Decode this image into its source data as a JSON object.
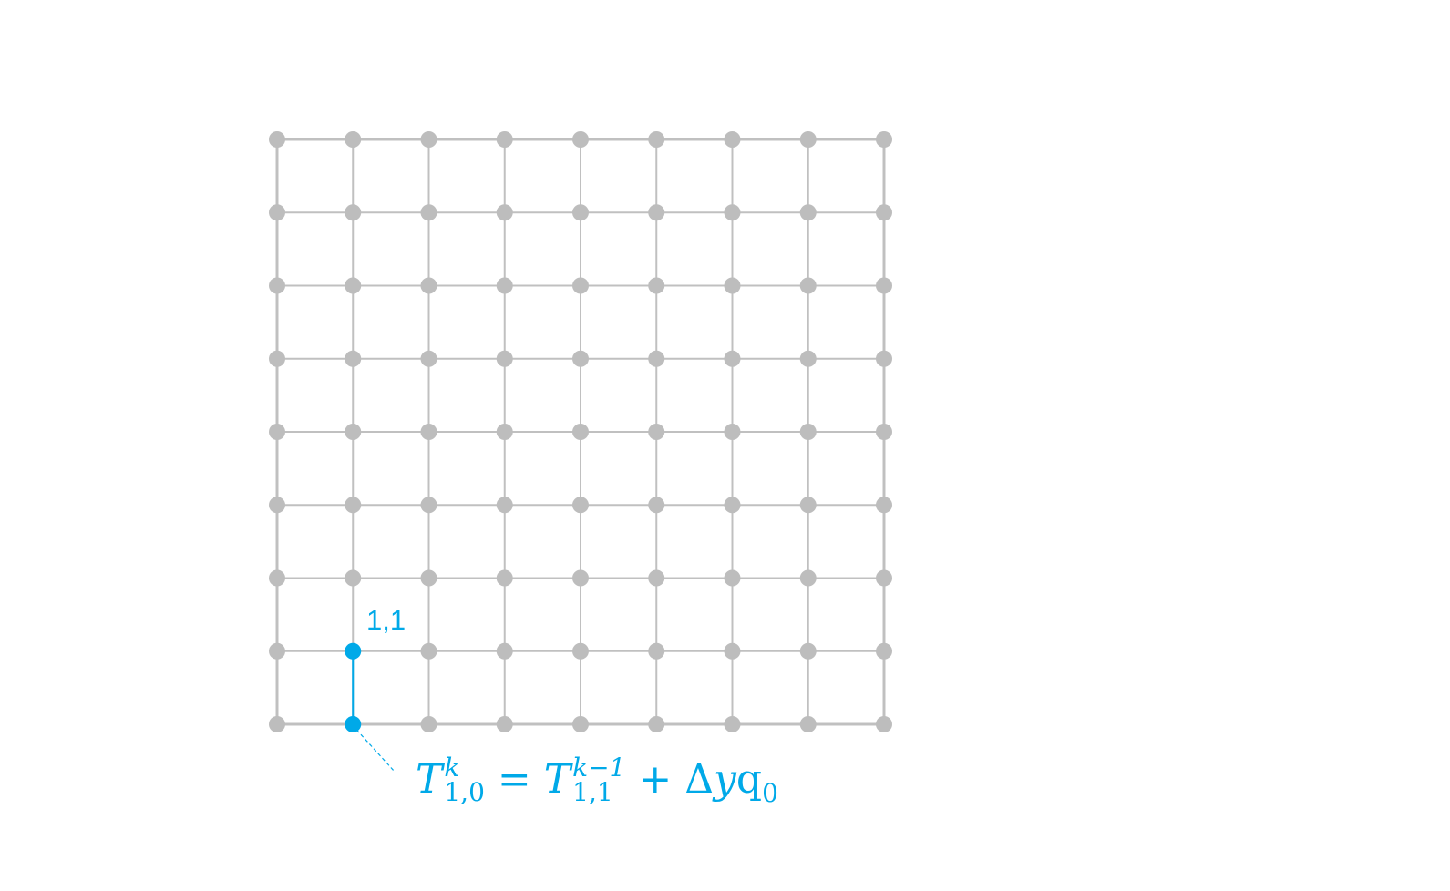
{
  "diagram": {
    "grid": {
      "columns": 9,
      "rows": 9,
      "line_color": "#c0c0c0",
      "node_color": "#bdbdbd"
    },
    "highlight": {
      "color": "#00a9e8",
      "node_label": "1,1",
      "nodes": [
        {
          "col": 1,
          "row": 1
        },
        {
          "col": 1,
          "row": 0
        }
      ]
    },
    "equation": {
      "lhs_symbol": "T",
      "lhs_superscript": "k",
      "lhs_subscript": "1,0",
      "equals": "=",
      "rhs_symbol": "T",
      "rhs_superscript": "k−1",
      "rhs_subscript": "1,1",
      "plus": "+",
      "delta": "Δ",
      "y": "y",
      "q": "q",
      "q_subscript": "0"
    }
  }
}
